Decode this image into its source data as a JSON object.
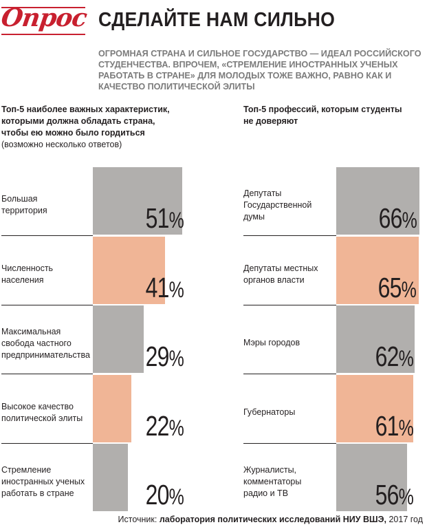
{
  "header": {
    "logo_text": "Опрос",
    "title": "СДЕЛАЙТЕ НАМ СИЛЬНО",
    "subtitle": "ОГРОМНАЯ СТРАНА И СИЛЬНОЕ ГОСУДАРСТВО — ИДЕАЛ РОССИЙСКОГО СТУДЕНЧЕСТВА. ВПРОЧЕМ, «СТРЕМЛЕНИЕ ИНОСТРАННЫХ УЧЕНЫХ РАБОТАТЬ В СТРАНЕ» ДЛЯ МОЛОДЫХ ТОЖЕ ВАЖНО, РАВНО КАК И КАЧЕСТВО ПОЛИТИЧЕСКОЙ ЭЛИТЫ"
  },
  "colors": {
    "logo": "#c8202f",
    "bar_gray": "#b1afad",
    "bar_peach": "#f0b596",
    "subtitle": "#7b7b7b"
  },
  "source": {
    "prefix": "Источник: ",
    "name": "лаборатория политических исследований НИУ ВШЭ,",
    "year": " 2017 год"
  },
  "chart_data": [
    {
      "type": "bar",
      "title": "Топ-5 наиболее важных характеристик, которыми должна обладать страна, чтобы ею можно было гордиться",
      "note": "(возможно несколько ответов)",
      "categories": [
        "Большая\nтерритория",
        "Численность\nнаселения",
        "Максимальная\nсвобода частного\nпредпринимательства",
        "Высокое качество\nполитической элиты",
        "Стремление\nиностранных ученых\nработать в стране"
      ],
      "values": [
        51,
        41,
        29,
        22,
        20
      ],
      "unit": "%",
      "bar_colors": [
        "#b1afad",
        "#f0b596",
        "#b1afad",
        "#f0b596",
        "#b1afad"
      ],
      "xlim": [
        0,
        100
      ]
    },
    {
      "type": "bar",
      "title": "Топ-5 профессий, которым студенты не доверяют",
      "note": "",
      "categories": [
        "Депутаты\nГосударственной\nдумы",
        "Депутаты местных\nорганов власти",
        "Мэры городов",
        "Губернаторы",
        "Журналисты,\nкомментаторы\nрадио и ТВ"
      ],
      "values": [
        66,
        65,
        62,
        61,
        56
      ],
      "unit": "%",
      "bar_colors": [
        "#b1afad",
        "#f0b596",
        "#b1afad",
        "#f0b596",
        "#b1afad"
      ],
      "xlim": [
        0,
        100
      ]
    }
  ]
}
